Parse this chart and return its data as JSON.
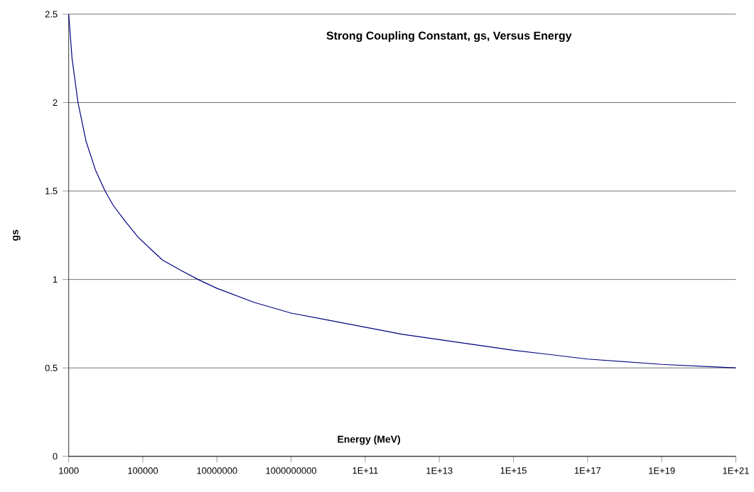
{
  "chart_data": {
    "type": "line",
    "title": "Strong Coupling Constant, gs, Versus Energy",
    "xlabel": "Energy (MeV)",
    "ylabel": "gs",
    "x": [
      1000,
      1230,
      1780,
      2950,
      5250,
      9550,
      15800,
      33100,
      74100,
      166000,
      339000,
      1100000,
      3090000,
      10000000,
      102000000,
      1000000000,
      10000000000,
      100000000000,
      1000000000000,
      10000000000000,
      1000000000000000,
      100000000000000000,
      10000000000000000000,
      1000000000000000000000
    ],
    "series": [
      {
        "color": "#000080",
        "values": [
          2.5,
          2.25,
          2.0,
          1.78,
          1.62,
          1.5,
          1.42,
          1.33,
          1.24,
          1.17,
          1.11,
          1.05,
          1.0,
          0.95,
          0.87,
          0.81,
          0.77,
          0.73,
          0.69,
          0.66,
          0.6,
          0.55,
          0.52,
          0.5
        ]
      }
    ],
    "log": "x",
    "grid": "y",
    "marker": "none",
    "line_style": "solid",
    "xlim": [
      1000,
      1000000000000000000000
    ],
    "ylim": [
      0,
      2.5
    ],
    "xticks": [
      1000,
      100000,
      10000000,
      1000000000,
      {
        "value": 100000000000,
        "label": "1E+11"
      },
      {
        "value": 10000000000000,
        "label": "1E+13"
      },
      {
        "value": 1000000000000000,
        "label": "1E+15"
      },
      {
        "value": 100000000000000000,
        "label": "1E+17"
      },
      {
        "value": 10000000000000000000,
        "label": "1E+19"
      },
      {
        "value": 1000000000000000000000,
        "label": "1E+21"
      }
    ],
    "yticks": [
      0,
      0.5,
      1,
      1.5,
      2,
      2.5
    ]
  }
}
